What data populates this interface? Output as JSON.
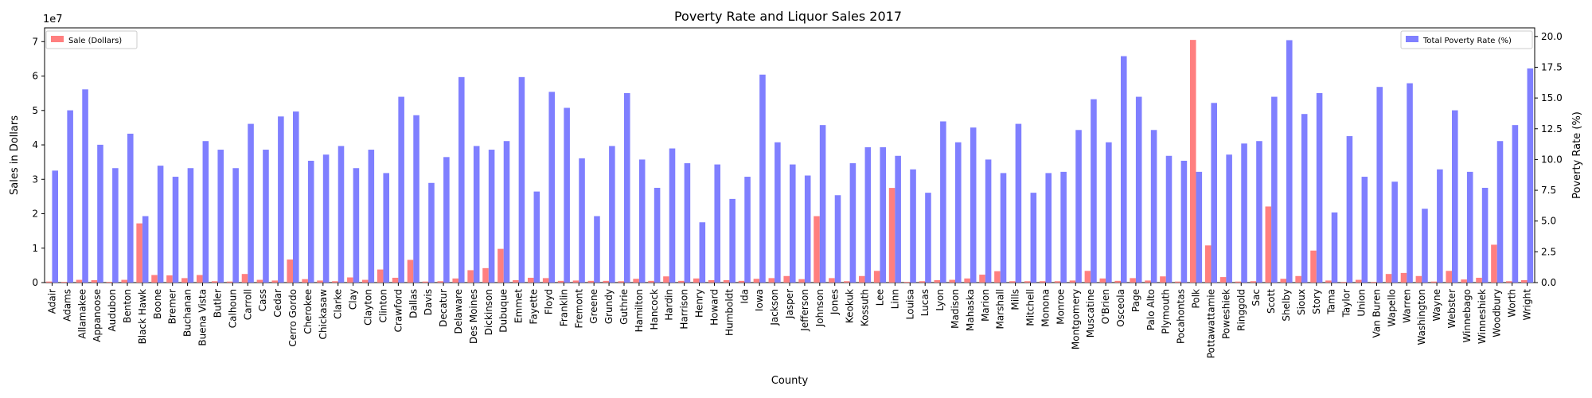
{
  "chart_data": {
    "type": "bar",
    "title": "Poverty Rate and Liquor Sales 2017",
    "xlabel": "County",
    "ylabel_left": "Sales in Dollars",
    "ylabel_right": "Poverty Rate (%)",
    "left_axis": {
      "min": 0,
      "max": 74000000,
      "ticks": [
        0,
        1,
        2,
        3,
        4,
        5,
        6,
        7
      ],
      "scale_label": "1e7"
    },
    "right_axis": {
      "min": 0,
      "max": 20.7,
      "ticks": [
        "0.0",
        "2.5",
        "5.0",
        "7.5",
        "10.0",
        "12.5",
        "15.0",
        "17.5",
        "20.0"
      ]
    },
    "grid": false,
    "categories": [
      "Adair",
      "Adams",
      "Allamakee",
      "Appanoose",
      "Audubon",
      "Benton",
      "Black Hawk",
      "Boone",
      "Bremer",
      "Buchanan",
      "Buena Vista",
      "Butler",
      "Calhoun",
      "Carroll",
      "Cass",
      "Cedar",
      "Cerro Gordo",
      "Cherokee",
      "Chickasaw",
      "Clarke",
      "Clay",
      "Clayton",
      "Clinton",
      "Crawford",
      "Dallas",
      "Davis",
      "Decatur",
      "Delaware",
      "Des Moines",
      "Dickinson",
      "Dubuque",
      "Emmet",
      "Fayette",
      "Floyd",
      "Franklin",
      "Fremont",
      "Greene",
      "Grundy",
      "Guthrie",
      "Hamilton",
      "Hancock",
      "Hardin",
      "Harrison",
      "Henry",
      "Howard",
      "Humboldt",
      "Ida",
      "Iowa",
      "Jackson",
      "Jasper",
      "Jefferson",
      "Johnson",
      "Jones",
      "Keokuk",
      "Kossuth",
      "Lee",
      "Linn",
      "Louisa",
      "Lucas",
      "Lyon",
      "Madison",
      "Mahaska",
      "Marion",
      "Marshall",
      "Mills",
      "Mitchell",
      "Monona",
      "Monroe",
      "Montgomery",
      "Muscatine",
      "O'Brien",
      "Osceola",
      "Page",
      "Palo Alto",
      "Plymouth",
      "Pocahontas",
      "Polk",
      "Pottawattamie",
      "Poweshiek",
      "Ringgold",
      "Sac",
      "Scott",
      "Shelby",
      "Sioux",
      "Story",
      "Tama",
      "Taylor",
      "Union",
      "Van Buren",
      "Wapello",
      "Warren",
      "Washington",
      "Wayne",
      "Webster",
      "Winnebago",
      "Winneshiek",
      "Woodbury",
      "Worth",
      "Wright"
    ],
    "series": [
      {
        "name": "Sale (Dollars)",
        "axis": "left",
        "color": "#ff7f7f",
        "values": [
          300000,
          200000,
          800000,
          700000,
          200000,
          800000,
          17200000,
          2200000,
          2100000,
          1300000,
          2200000,
          400000,
          300000,
          2500000,
          800000,
          600000,
          6700000,
          1000000,
          600000,
          400000,
          1500000,
          800000,
          3800000,
          1400000,
          6600000,
          300000,
          400000,
          1200000,
          3600000,
          4200000,
          9800000,
          700000,
          1400000,
          1300000,
          500000,
          600000,
          500000,
          500000,
          400000,
          1100000,
          500000,
          1800000,
          500000,
          1200000,
          700000,
          700000,
          500000,
          1100000,
          1300000,
          1900000,
          1000000,
          19300000,
          1300000,
          400000,
          1900000,
          3400000,
          27500000,
          200000,
          400000,
          700000,
          800000,
          1200000,
          2300000,
          3300000,
          400000,
          400000,
          400000,
          400000,
          600000,
          3400000,
          1200000,
          500000,
          1300000,
          600000,
          1800000,
          300000,
          70500000,
          10800000,
          1600000,
          300000,
          400000,
          22100000,
          1100000,
          1900000,
          9300000,
          600000,
          200000,
          800000,
          200000,
          2500000,
          2800000,
          1900000,
          300000,
          3400000,
          900000,
          1400000,
          11000000,
          400000,
          700000
        ]
      },
      {
        "name": "Total Poverty Rate (%)",
        "axis": "right",
        "color": "#7f7fff",
        "values": [
          9.1,
          14.0,
          15.7,
          11.2,
          9.3,
          12.1,
          5.4,
          9.5,
          8.6,
          9.3,
          11.5,
          10.8,
          9.3,
          12.9,
          10.8,
          13.5,
          13.9,
          9.9,
          10.4,
          11.1,
          9.3,
          10.8,
          8.9,
          15.1,
          13.6,
          8.1,
          10.2,
          16.7,
          11.1,
          10.8,
          11.5,
          16.7,
          7.4,
          15.5,
          14.2,
          10.1,
          5.4,
          11.1,
          15.4,
          10.0,
          7.7,
          10.9,
          9.7,
          4.9,
          9.6,
          6.8,
          8.6,
          16.9,
          11.4,
          9.6,
          8.7,
          12.8,
          7.1,
          9.7,
          11.0,
          11.0,
          10.3,
          9.2,
          7.3,
          13.1,
          11.4,
          12.6,
          10.0,
          8.9,
          12.9,
          7.3,
          8.9,
          9.0,
          12.4,
          14.9,
          11.4,
          18.4,
          15.1,
          12.4,
          10.3,
          9.9,
          9.0,
          14.6,
          10.4,
          11.3,
          11.5,
          15.1,
          19.7,
          13.7,
          15.4,
          5.7,
          11.9,
          8.6,
          15.9,
          8.2,
          16.2,
          6.0,
          9.2,
          14.0,
          9.0,
          7.7,
          11.5,
          12.8,
          17.4
        ]
      }
    ],
    "legends": [
      {
        "label": "Sale (Dollars)",
        "color": "#ff7f7f",
        "placement": "top-left"
      },
      {
        "label": "Total Poverty Rate (%)",
        "color": "#7f7fff",
        "placement": "top-right"
      }
    ]
  }
}
